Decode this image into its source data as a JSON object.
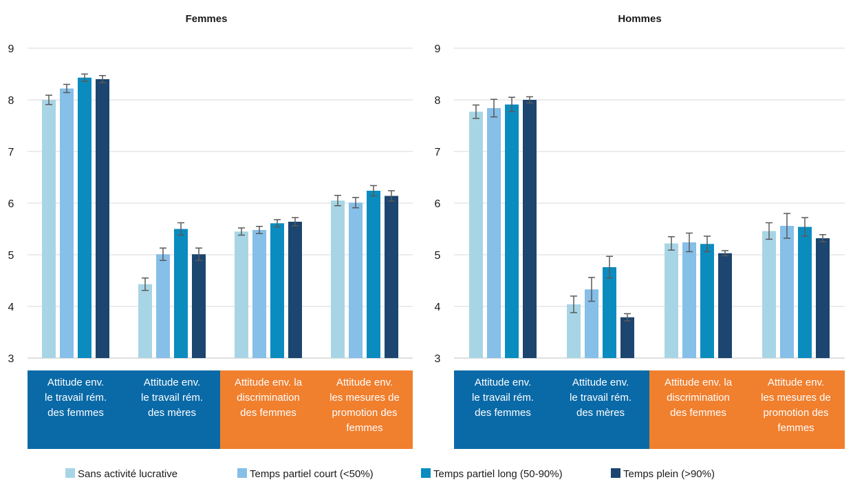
{
  "chart_data": [
    {
      "type": "bar",
      "title": "Femmes",
      "ylim": [
        3,
        9
      ],
      "yticks": [
        3,
        4,
        5,
        6,
        7,
        8,
        9
      ],
      "grid": true,
      "categories": [
        "Attitude env. le travail rém. des femmes",
        "Attitude env. le travail rém. des mères",
        "Attitude env. la discrimination des femmes",
        "Attitude env. les mesures de promotion des femmes"
      ],
      "category_lines": [
        [
          "Attitude env.",
          "le travail rém.",
          "des femmes"
        ],
        [
          "Attitude env.",
          "le travail rém.",
          "des mères"
        ],
        [
          "Attitude env. la",
          "discrimination",
          "des femmes"
        ],
        [
          "Attitude env.",
          "les mesures de",
          "promotion des",
          "femmes"
        ]
      ],
      "category_colors": [
        "#0a6aa8",
        "#0a6aa8",
        "#f07f2e",
        "#f07f2e"
      ],
      "series": [
        {
          "name": "Sans activité lucrative",
          "values": [
            8.0,
            4.43,
            5.45,
            6.05
          ],
          "errors": [
            0.09,
            0.12,
            0.07,
            0.1
          ]
        },
        {
          "name": "Temps partiel court (<50%)",
          "values": [
            8.22,
            5.01,
            5.48,
            6.01
          ],
          "errors": [
            0.08,
            0.12,
            0.07,
            0.1
          ]
        },
        {
          "name": "Temps partiel long (50-90%)",
          "values": [
            8.43,
            5.5,
            5.61,
            6.24
          ],
          "errors": [
            0.07,
            0.12,
            0.07,
            0.1
          ]
        },
        {
          "name": "Temps plein (>90%)",
          "values": [
            8.4,
            5.01,
            5.64,
            6.14
          ],
          "errors": [
            0.07,
            0.12,
            0.08,
            0.1
          ]
        }
      ]
    },
    {
      "type": "bar",
      "title": "Hommes",
      "ylim": [
        3,
        9
      ],
      "yticks": [
        3,
        4,
        5,
        6,
        7,
        8,
        9
      ],
      "grid": true,
      "categories": [
        "Attitude env. le travail rém. des femmes",
        "Attitude env. le travail rém. des mères",
        "Attitude env. la discrimination des femmes",
        "Attitude env. les mesures de promotion des femmes"
      ],
      "category_lines": [
        [
          "Attitude env.",
          "le travail rém.",
          "des femmes"
        ],
        [
          "Attitude env.",
          "le travail rém.",
          "des mères"
        ],
        [
          "Attitude env. la",
          "discrimination",
          "des femmes"
        ],
        [
          "Attitude env.",
          "les mesures de",
          "promotion des",
          "femmes"
        ]
      ],
      "category_colors": [
        "#0a6aa8",
        "#0a6aa8",
        "#f07f2e",
        "#f07f2e"
      ],
      "series": [
        {
          "name": "Sans activité lucrative",
          "values": [
            7.77,
            4.04,
            5.22,
            5.46
          ],
          "errors": [
            0.13,
            0.16,
            0.13,
            0.16
          ]
        },
        {
          "name": "Temps partiel court (<50%)",
          "values": [
            7.84,
            4.33,
            5.24,
            5.56
          ],
          "errors": [
            0.17,
            0.23,
            0.18,
            0.24
          ]
        },
        {
          "name": "Temps partiel long (50-90%)",
          "values": [
            7.91,
            4.76,
            5.21,
            5.54
          ],
          "errors": [
            0.14,
            0.21,
            0.15,
            0.18
          ]
        },
        {
          "name": "Temps plein (>90%)",
          "values": [
            8.0,
            3.79,
            5.03,
            5.32
          ],
          "errors": [
            0.06,
            0.07,
            0.05,
            0.07
          ]
        }
      ]
    }
  ],
  "legend": {
    "placement": "bottom",
    "items": [
      {
        "label": "Sans activité lucrative",
        "color": "#a8d5e5"
      },
      {
        "label": "Temps partiel court (<50%)",
        "color": "#86bfe8"
      },
      {
        "label": "Temps partiel long (50-90%)",
        "color": "#0b8cbf"
      },
      {
        "label": "Temps plein (>90%)",
        "color": "#1c456f"
      }
    ]
  }
}
